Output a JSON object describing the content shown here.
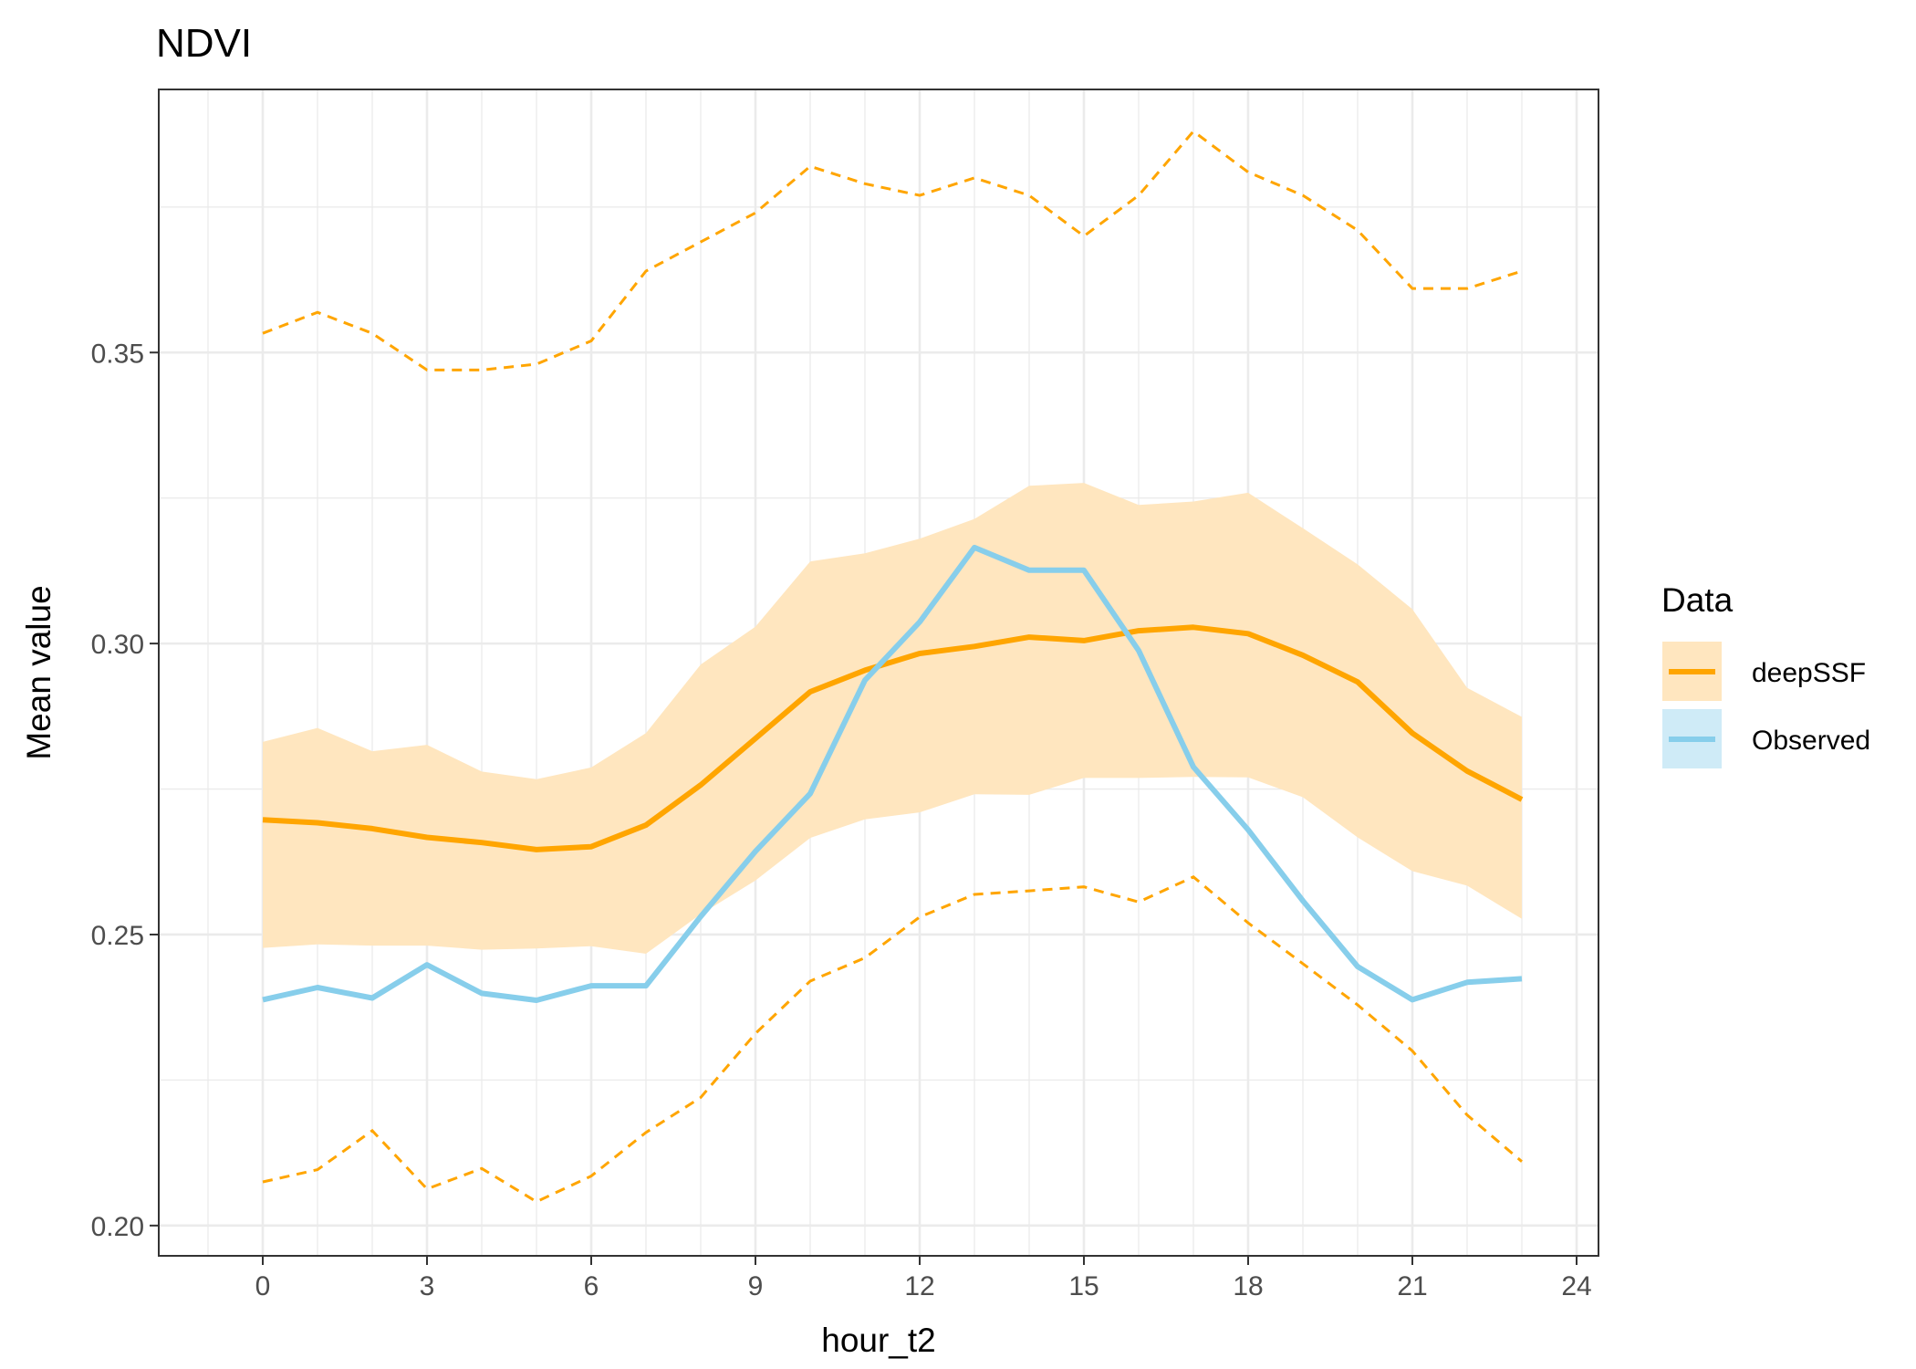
{
  "chart_data": {
    "type": "line",
    "title": "NDVI",
    "xlabel": "hour_t2",
    "ylabel": "Mean value",
    "xlim": [
      -1.9,
      24.4
    ],
    "ylim": [
      0.1948,
      0.3952
    ],
    "x_ticks": [
      0,
      3,
      6,
      9,
      12,
      15,
      18,
      21,
      24
    ],
    "x_tick_labels": [
      "0",
      "3",
      "6",
      "9",
      "12",
      "15",
      "18",
      "21",
      "24"
    ],
    "y_ticks": [
      0.2,
      0.25,
      0.3,
      0.35
    ],
    "y_tick_labels": [
      "0.20",
      "0.25",
      "0.30",
      "0.35"
    ],
    "grid": true,
    "legend": {
      "title": "Data",
      "position": "right"
    },
    "x": [
      0,
      1,
      2,
      3,
      4,
      5,
      6,
      7,
      8,
      9,
      10,
      11,
      12,
      13,
      14,
      15,
      16,
      17,
      18,
      19,
      20,
      21,
      22,
      23
    ],
    "series": [
      {
        "name": "deepSSF",
        "color": "#FFA500",
        "band_color": "#FFE6BF",
        "values": [
          0.2697,
          0.2692,
          0.2682,
          0.2667,
          0.2658,
          0.2646,
          0.2651,
          0.2688,
          0.2757,
          0.2837,
          0.2917,
          0.2954,
          0.2983,
          0.2995,
          0.3011,
          0.3005,
          0.3022,
          0.3028,
          0.3017,
          0.298,
          0.2934,
          0.2846,
          0.2781,
          0.2732
        ],
        "band_lower": [
          0.2477,
          0.2483,
          0.2481,
          0.2481,
          0.2474,
          0.2476,
          0.248,
          0.2467,
          0.2535,
          0.2593,
          0.2666,
          0.2698,
          0.271,
          0.2741,
          0.274,
          0.2769,
          0.2769,
          0.2771,
          0.277,
          0.2736,
          0.2667,
          0.2609,
          0.2584,
          0.2527
        ],
        "band_upper": [
          0.2831,
          0.2855,
          0.2815,
          0.2826,
          0.278,
          0.2767,
          0.2787,
          0.2846,
          0.2964,
          0.3029,
          0.3141,
          0.3155,
          0.318,
          0.3214,
          0.3271,
          0.3276,
          0.3238,
          0.3244,
          0.3259,
          0.3198,
          0.3136,
          0.3059,
          0.2924,
          0.2874
        ],
        "outer_upper": [
          0.3533,
          0.3569,
          0.3533,
          0.347,
          0.347,
          0.348,
          0.352,
          0.364,
          0.369,
          0.374,
          0.382,
          0.379,
          0.377,
          0.38,
          0.377,
          0.37,
          0.377,
          0.388,
          0.381,
          0.377,
          0.371,
          0.361,
          0.361,
          0.364
        ],
        "outer_lower": [
          0.2075,
          0.2096,
          0.2163,
          0.2063,
          0.2098,
          0.2041,
          0.2085,
          0.216,
          0.222,
          0.233,
          0.242,
          0.246,
          0.253,
          0.2569,
          0.2575,
          0.2582,
          0.2556,
          0.2599,
          0.252,
          0.245,
          0.2379,
          0.23,
          0.219,
          0.211
        ]
      },
      {
        "name": "Observed",
        "color": "#87CEEB",
        "band_color": "#CFEBF7",
        "values": [
          0.2388,
          0.2409,
          0.2391,
          0.2448,
          0.2399,
          0.2387,
          0.2412,
          0.2412,
          0.2531,
          0.2643,
          0.2742,
          0.2937,
          0.3037,
          0.3165,
          0.3126,
          0.3126,
          0.2988,
          0.2788,
          0.268,
          0.2558,
          0.2445,
          0.2388,
          0.2418,
          0.2424
        ]
      }
    ]
  }
}
